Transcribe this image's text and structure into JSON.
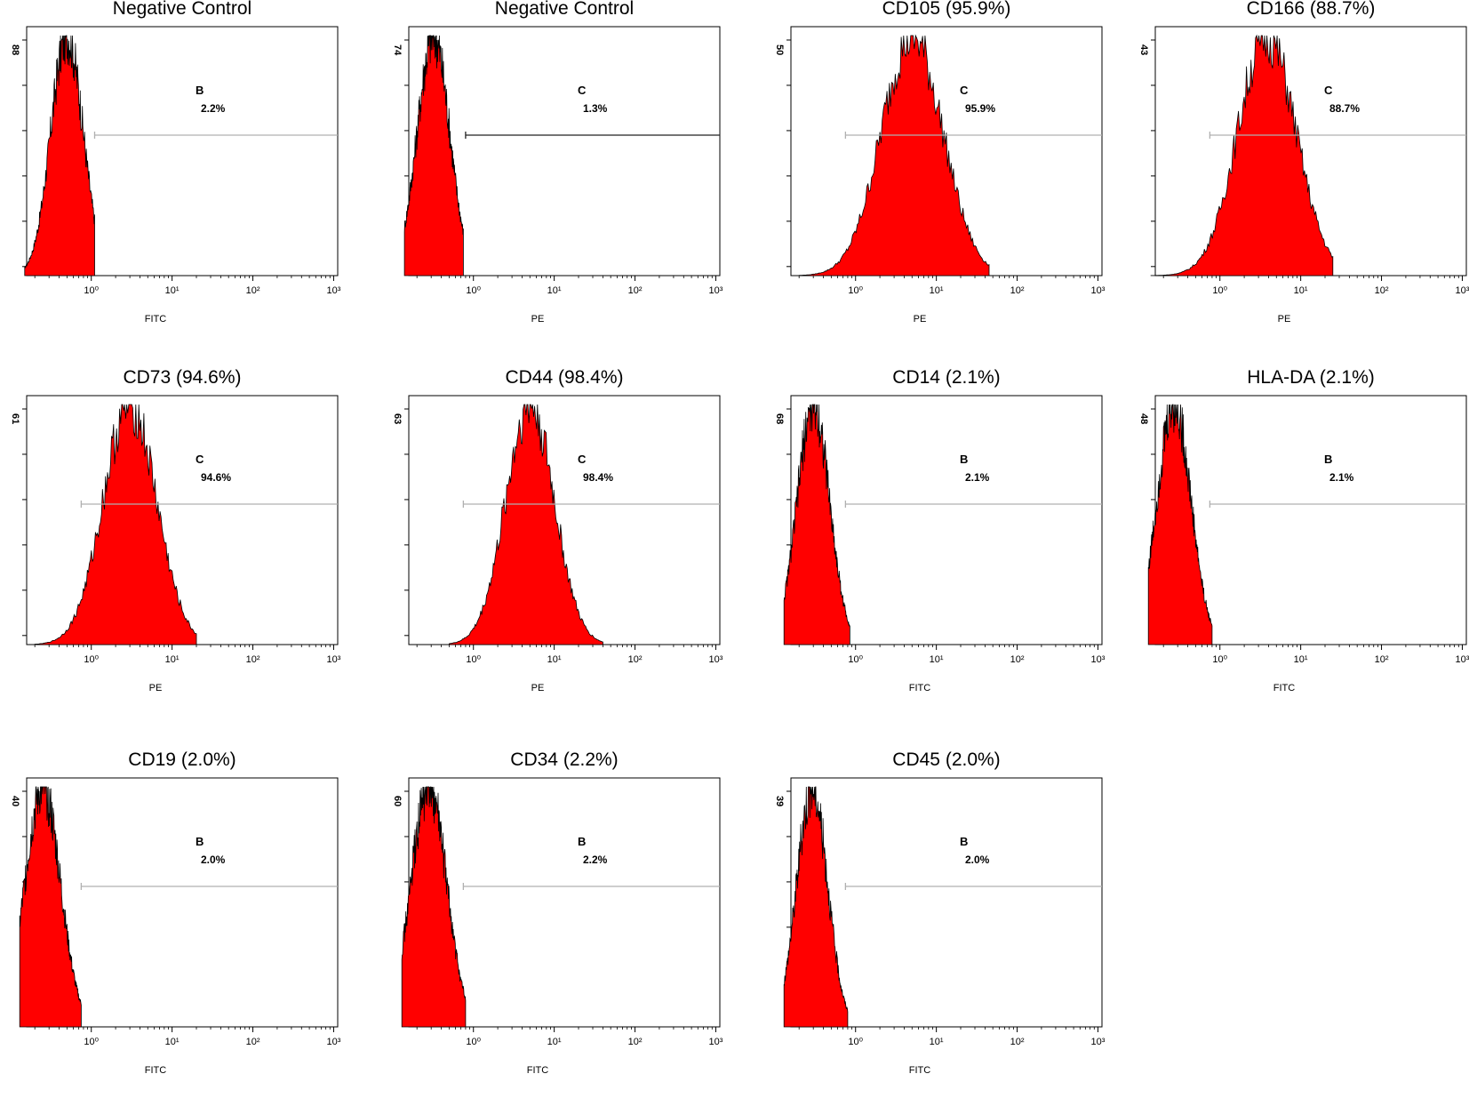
{
  "colors": {
    "fill": "#ff0000",
    "outline": "#000000",
    "axis": "#000000",
    "gate_dark": "#222222",
    "gate_light": "#b0b0b0"
  },
  "chart_data": [
    {
      "type": "area",
      "title": "Negative Control",
      "xlabel": "FITC",
      "ymax_label": "88",
      "xscale": "log",
      "x_ticks": [
        "10⁰",
        "10¹",
        "10²",
        "10³"
      ],
      "gate": {
        "name": "B",
        "percent": "2.2%",
        "start": 1.1,
        "style": "light"
      },
      "histogram": {
        "mu": 0.5,
        "sigma": 0.2,
        "lo": 0.15,
        "hi": 1.1,
        "peak_x": 0.5
      }
    },
    {
      "type": "area",
      "title": "Negative Control",
      "xlabel": "PE",
      "ymax_label": "74",
      "xscale": "log",
      "x_ticks": [
        "10⁰",
        "10¹",
        "10²",
        "10³"
      ],
      "gate": {
        "name": "C",
        "percent": "1.3%",
        "start": 0.8,
        "style": "dark"
      },
      "histogram": {
        "mu": 0.32,
        "sigma": 0.2,
        "lo": 0.14,
        "hi": 0.75,
        "peak_x": 0.32
      }
    },
    {
      "type": "area",
      "title": "CD105 (95.9%)",
      "xlabel": "PE",
      "ymax_label": "50",
      "xscale": "log",
      "x_ticks": [
        "10⁰",
        "10¹",
        "10²",
        "10³"
      ],
      "gate": {
        "name": "C",
        "percent": "95.9%",
        "start": 0.75,
        "style": "light"
      },
      "histogram": {
        "mu": 5.0,
        "sigma": 0.38,
        "lo": 0.2,
        "hi": 45,
        "peak_x": 5.0
      }
    },
    {
      "type": "area",
      "title": "CD166 (88.7%)",
      "xlabel": "PE",
      "ymax_label": "43",
      "xscale": "log",
      "x_ticks": [
        "10⁰",
        "10¹",
        "10²",
        "10³"
      ],
      "gate": {
        "name": "C",
        "percent": "88.7%",
        "start": 0.75,
        "style": "light"
      },
      "histogram": {
        "mu": 3.8,
        "sigma": 0.36,
        "lo": 0.14,
        "hi": 25,
        "peak_x": 3.8
      }
    },
    {
      "type": "area",
      "title": "CD73 (94.6%)",
      "xlabel": "PE",
      "ymax_label": "61",
      "xscale": "log",
      "x_ticks": [
        "10⁰",
        "10¹",
        "10²",
        "10³"
      ],
      "gate": {
        "name": "C",
        "percent": "94.6%",
        "start": 0.75,
        "style": "light"
      },
      "histogram": {
        "mu": 3.0,
        "sigma": 0.33,
        "lo": 0.2,
        "hi": 20,
        "peak_x": 3.0
      }
    },
    {
      "type": "area",
      "title": "CD44 (98.4%)",
      "xlabel": "PE",
      "ymax_label": "63",
      "xscale": "log",
      "x_ticks": [
        "10⁰",
        "10¹",
        "10²",
        "10³"
      ],
      "gate": {
        "name": "C",
        "percent": "98.4%",
        "start": 0.75,
        "style": "light"
      },
      "histogram": {
        "mu": 5.0,
        "sigma": 0.3,
        "lo": 0.5,
        "hi": 40,
        "peak_x": 5.0
      }
    },
    {
      "type": "area",
      "title": "CD14 (2.1%)",
      "xlabel": "FITC",
      "ymax_label": "68",
      "xscale": "log",
      "x_ticks": [
        "10⁰",
        "10¹",
        "10²",
        "10³"
      ],
      "gate": {
        "name": "B",
        "percent": "2.1%",
        "start": 0.75,
        "style": "light"
      },
      "histogram": {
        "mu": 0.3,
        "sigma": 0.2,
        "lo": 0.13,
        "hi": 0.85,
        "peak_x": 0.3
      }
    },
    {
      "type": "area",
      "title": "HLA-DA (2.1%)",
      "xlabel": "FITC",
      "ymax_label": "48",
      "xscale": "log",
      "x_ticks": [
        "10⁰",
        "10¹",
        "10²",
        "10³"
      ],
      "gate": {
        "name": "B",
        "percent": "2.1%",
        "start": 0.75,
        "style": "light"
      },
      "histogram": {
        "mu": 0.27,
        "sigma": 0.21,
        "lo": 0.13,
        "hi": 0.8,
        "peak_x": 0.27
      }
    },
    {
      "type": "area",
      "title": "CD19 (2.0%)",
      "xlabel": "FITC",
      "ymax_label": "40",
      "xscale": "log",
      "x_ticks": [
        "10⁰",
        "10¹",
        "10²",
        "10³"
      ],
      "gate": {
        "name": "B",
        "percent": "2.0%",
        "start": 0.75,
        "style": "light"
      },
      "histogram": {
        "mu": 0.25,
        "sigma": 0.22,
        "lo": 0.13,
        "hi": 0.75,
        "peak_x": 0.25
      }
    },
    {
      "type": "area",
      "title": "CD34 (2.2%)",
      "xlabel": "FITC",
      "ymax_label": "60",
      "xscale": "log",
      "x_ticks": [
        "10⁰",
        "10¹",
        "10²",
        "10³"
      ],
      "gate": {
        "name": "B",
        "percent": "2.2%",
        "start": 0.75,
        "style": "light"
      },
      "histogram": {
        "mu": 0.28,
        "sigma": 0.22,
        "lo": 0.13,
        "hi": 0.8,
        "peak_x": 0.28
      }
    },
    {
      "type": "area",
      "title": "CD45 (2.0%)",
      "xlabel": "FITC",
      "ymax_label": "39",
      "xscale": "log",
      "x_ticks": [
        "10⁰",
        "10¹",
        "10²",
        "10³"
      ],
      "gate": {
        "name": "B",
        "percent": "2.0%",
        "start": 0.75,
        "style": "light"
      },
      "histogram": {
        "mu": 0.29,
        "sigma": 0.19,
        "lo": 0.13,
        "hi": 0.8,
        "peak_x": 0.29
      }
    }
  ]
}
